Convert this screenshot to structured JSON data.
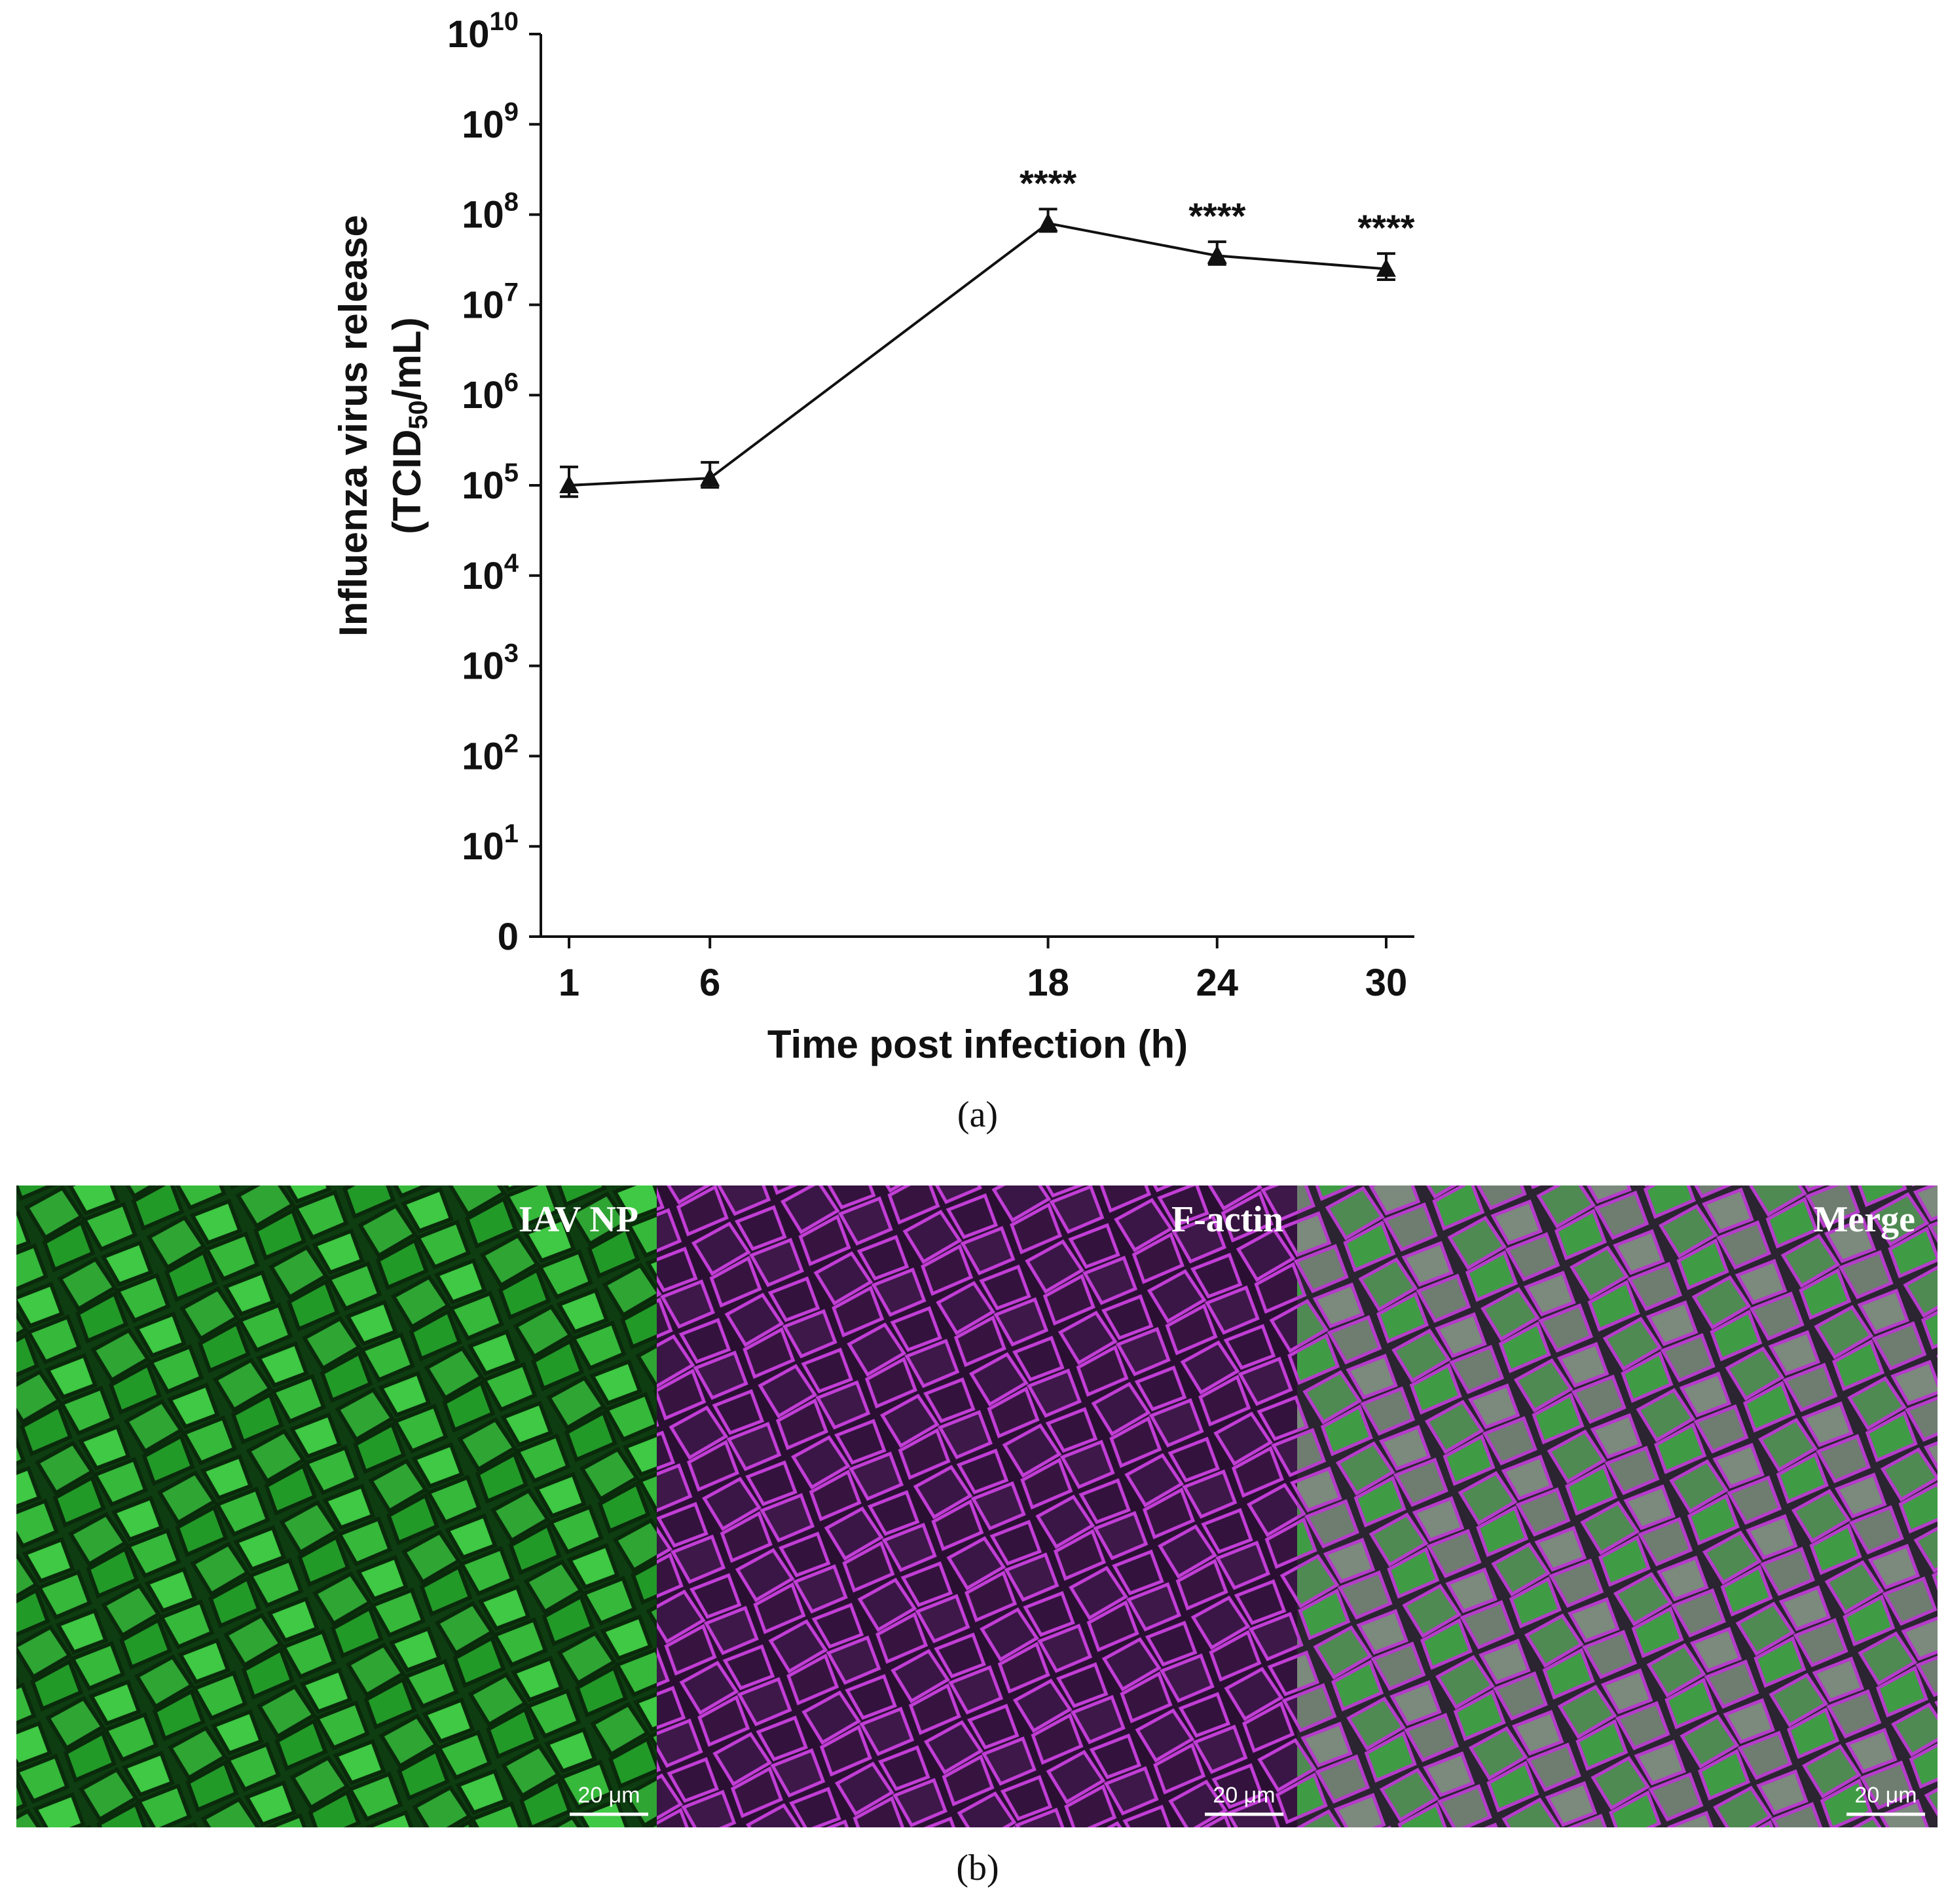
{
  "chart_data": {
    "type": "line",
    "title": "",
    "xlabel": "Time post infection (h)",
    "ylabel_line1": "Influenza virus release",
    "ylabel_line2_prefix": "(TCID",
    "ylabel_line2_sub": "50",
    "ylabel_line2_suffix": "/mL)",
    "y_scale": "log",
    "ylim": [
      1,
      10000000000
    ],
    "y_ticks": [
      {
        "base": "0",
        "exp": ""
      },
      {
        "base": "10",
        "exp": "1"
      },
      {
        "base": "10",
        "exp": "2"
      },
      {
        "base": "10",
        "exp": "3"
      },
      {
        "base": "10",
        "exp": "4"
      },
      {
        "base": "10",
        "exp": "5"
      },
      {
        "base": "10",
        "exp": "6"
      },
      {
        "base": "10",
        "exp": "7"
      },
      {
        "base": "10",
        "exp": "8"
      },
      {
        "base": "10",
        "exp": "9"
      },
      {
        "base": "10",
        "exp": "10"
      }
    ],
    "x_ticks": [
      "1",
      "6",
      "18",
      "24",
      "30"
    ],
    "xlim": [
      0,
      31
    ],
    "series": [
      {
        "x": [
          1,
          6,
          18,
          24,
          30
        ],
        "y": [
          100000,
          120000,
          80000000,
          35000000,
          25000000
        ],
        "err_upper": [
          160000,
          180000,
          115000000,
          50000000,
          37000000
        ],
        "err_lower": [
          75000,
          95000,
          65000000,
          28000000,
          19000000
        ],
        "significance": [
          "",
          "",
          "****",
          "****",
          "****"
        ]
      }
    ],
    "grid": false,
    "legend": "none",
    "marker": "triangle",
    "line_color": "#111111"
  },
  "panel_labels": {
    "a": "(a)",
    "b": "(b)"
  },
  "micrographs": [
    {
      "label": "IAV NP",
      "scale_bar": "20 μm",
      "color": "#27d12c"
    },
    {
      "label": "F-actin",
      "scale_bar": "20 μm",
      "color": "#b630c8"
    },
    {
      "label": "Merge",
      "scale_bar": "20 μm",
      "color": "#7fa07f"
    }
  ]
}
